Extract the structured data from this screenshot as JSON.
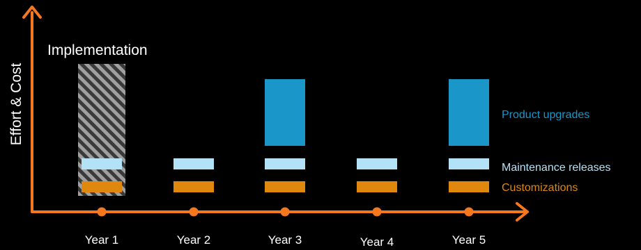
{
  "colors": {
    "background": "#000000",
    "axis": "#f5781f",
    "implementation": "#9a9a9a",
    "product_upgrades": "#1b96c8",
    "maintenance_releases": "#b3e2f6",
    "customizations": "#e0870e",
    "text": "#ffffff"
  },
  "chart_data": {
    "type": "bar",
    "ylabel": "Effort & Cost",
    "categories": [
      "Year 1",
      "Year 2",
      "Year 3",
      "Year 4",
      "Year 5"
    ],
    "annotation": "Implementation",
    "legend": [
      {
        "label": "Product upgrades",
        "color": "#1b96c8"
      },
      {
        "label": "Maintenance releases",
        "color": "#b3e2f6"
      },
      {
        "label": "Customizations",
        "color": "#e0870e"
      }
    ],
    "series": [
      {
        "name": "Implementation",
        "pattern": "hatched",
        "values": [
          10,
          0,
          0,
          0,
          0
        ]
      },
      {
        "name": "Customizations",
        "values": [
          1,
          1,
          1,
          1,
          1
        ]
      },
      {
        "name": "Maintenance releases",
        "values": [
          1,
          1,
          1,
          1,
          1
        ]
      },
      {
        "name": "Product upgrades",
        "values": [
          0,
          0,
          5,
          0,
          5
        ]
      }
    ]
  }
}
